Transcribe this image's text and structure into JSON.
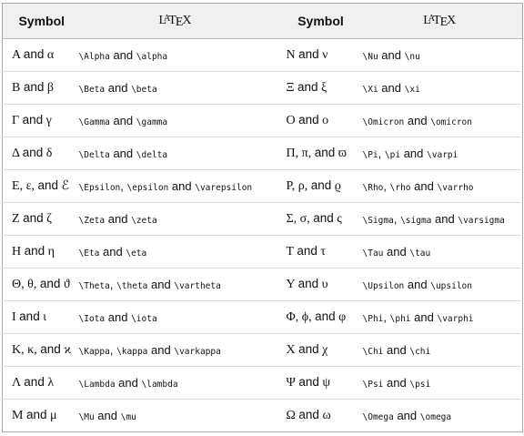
{
  "header": {
    "symbol_label": "Symbol",
    "latex_label": "LaTeX"
  },
  "connector": "and",
  "left_rows": [
    {
      "symbols": [
        "Α",
        "α"
      ],
      "cmds": [
        "\\Alpha",
        "\\alpha"
      ]
    },
    {
      "symbols": [
        "Β",
        "β"
      ],
      "cmds": [
        "\\Beta",
        "\\beta"
      ]
    },
    {
      "symbols": [
        "Γ",
        "γ"
      ],
      "cmds": [
        "\\Gamma",
        "\\gamma"
      ]
    },
    {
      "symbols": [
        "Δ",
        "δ"
      ],
      "cmds": [
        "\\Delta",
        "\\delta"
      ]
    },
    {
      "symbols": [
        "Ε",
        "ε",
        "ℰ"
      ],
      "cmds": [
        "\\Epsilon",
        "\\epsilon",
        "\\varepsilon"
      ]
    },
    {
      "symbols": [
        "Ζ",
        "ζ"
      ],
      "cmds": [
        "\\Zeta",
        "\\zeta"
      ]
    },
    {
      "symbols": [
        "Η",
        "η"
      ],
      "cmds": [
        "\\Eta",
        "\\eta"
      ]
    },
    {
      "symbols": [
        "Θ",
        "θ",
        "ϑ"
      ],
      "cmds": [
        "\\Theta",
        "\\theta",
        "\\vartheta"
      ]
    },
    {
      "symbols": [
        "Ι",
        "ι"
      ],
      "cmds": [
        "\\Iota",
        "\\iota"
      ]
    },
    {
      "symbols": [
        "Κ",
        "κ",
        "ϰ"
      ],
      "cmds": [
        "\\Kappa",
        "\\kappa",
        "\\varkappa"
      ]
    },
    {
      "symbols": [
        "Λ",
        "λ"
      ],
      "cmds": [
        "\\Lambda",
        "\\lambda"
      ]
    },
    {
      "symbols": [
        "Μ",
        "μ"
      ],
      "cmds": [
        "\\Mu",
        "\\mu"
      ]
    }
  ],
  "right_rows": [
    {
      "symbols": [
        "Ν",
        "ν"
      ],
      "cmds": [
        "\\Nu",
        "\\nu"
      ]
    },
    {
      "symbols": [
        "Ξ",
        "ξ"
      ],
      "cmds": [
        "\\Xi",
        "\\xi"
      ]
    },
    {
      "symbols": [
        "Ο",
        "ο"
      ],
      "cmds": [
        "\\Omicron",
        "\\omicron"
      ]
    },
    {
      "symbols": [
        "Π",
        "π",
        "ϖ"
      ],
      "cmds": [
        "\\Pi",
        "\\pi",
        "\\varpi"
      ]
    },
    {
      "symbols": [
        "Ρ",
        "ρ",
        "ϱ"
      ],
      "cmds": [
        "\\Rho",
        "\\rho",
        "\\varrho"
      ]
    },
    {
      "symbols": [
        "Σ",
        "σ",
        "ς"
      ],
      "cmds": [
        "\\Sigma",
        "\\sigma",
        "\\varsigma"
      ]
    },
    {
      "symbols": [
        "Τ",
        "τ"
      ],
      "cmds": [
        "\\Tau",
        "\\tau"
      ]
    },
    {
      "symbols": [
        "Υ",
        "υ"
      ],
      "cmds": [
        "\\Upsilon",
        "\\upsilon"
      ]
    },
    {
      "symbols": [
        "Φ",
        "ϕ",
        "φ"
      ],
      "cmds": [
        "\\Phi",
        "\\phi",
        "\\varphi"
      ]
    },
    {
      "symbols": [
        "Χ",
        "χ"
      ],
      "cmds": [
        "\\Chi",
        "\\chi"
      ]
    },
    {
      "symbols": [
        "Ψ",
        "ψ"
      ],
      "cmds": [
        "\\Psi",
        "\\psi"
      ]
    },
    {
      "symbols": [
        "Ω",
        "ω"
      ],
      "cmds": [
        "\\Omega",
        "\\omega"
      ]
    }
  ]
}
